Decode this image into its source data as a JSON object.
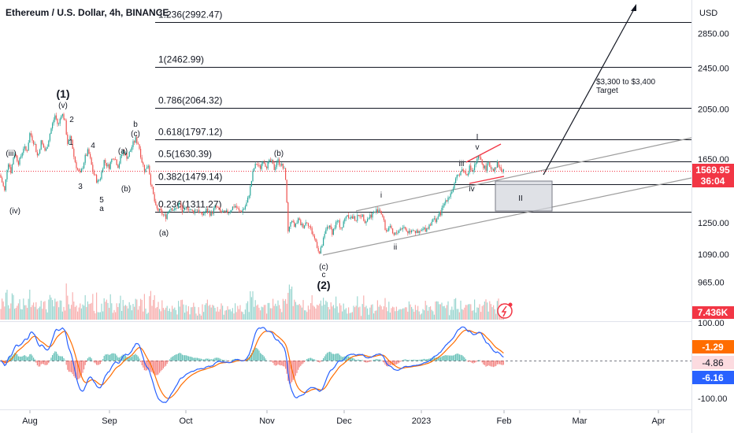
{
  "header": {
    "title": "Ethereum / U.S. Dollar, 4h, BINANCE",
    "currency": "USD"
  },
  "colors": {
    "up": "#26a69a",
    "down": "#ef5350",
    "accent_red": "#f23645",
    "macd_line": "#2962ff",
    "signal_line": "#ff6d00",
    "fib_line": "#131722",
    "channel_line": "#9e9e9e"
  },
  "chart_data": {
    "type": "candlestick",
    "price_axis": {
      "ticks": [
        "2850.00",
        "2450.00",
        "2050.00",
        "1650.00",
        "1250.00",
        "1090.00",
        "965.00"
      ],
      "tick_values": [
        2850,
        2450,
        2050,
        1650,
        1250,
        1090,
        965
      ],
      "scale": "log",
      "range": [
        900,
        3450
      ]
    },
    "time_axis": {
      "labels": [
        "Aug",
        "Sep",
        "Oct",
        "Nov",
        "Dec",
        "2023",
        "Feb",
        "Mar",
        "Apr"
      ]
    },
    "price_path": [
      [
        0,
        1540
      ],
      [
        6,
        1430
      ],
      [
        10,
        1640
      ],
      [
        14,
        1560
      ],
      [
        18,
        1700
      ],
      [
        24,
        1620
      ],
      [
        30,
        1740
      ],
      [
        34,
        1700
      ],
      [
        38,
        1850
      ],
      [
        44,
        1760
      ],
      [
        48,
        1660
      ],
      [
        52,
        1780
      ],
      [
        58,
        1700
      ],
      [
        64,
        1860
      ],
      [
        70,
        2000
      ],
      [
        74,
        1900
      ],
      [
        78,
        2020
      ],
      [
        82,
        1960
      ],
      [
        86,
        1760
      ],
      [
        90,
        1820
      ],
      [
        94,
        1660
      ],
      [
        98,
        1580
      ],
      [
        102,
        1540
      ],
      [
        108,
        1660
      ],
      [
        112,
        1710
      ],
      [
        118,
        1560
      ],
      [
        124,
        1490
      ],
      [
        128,
        1530
      ],
      [
        132,
        1640
      ],
      [
        138,
        1590
      ],
      [
        144,
        1680
      ],
      [
        150,
        1600
      ],
      [
        156,
        1710
      ],
      [
        162,
        1660
      ],
      [
        168,
        1750
      ],
      [
        172,
        1800
      ],
      [
        176,
        1760
      ],
      [
        180,
        1640
      ],
      [
        184,
        1560
      ],
      [
        188,
        1620
      ],
      [
        192,
        1470
      ],
      [
        198,
        1330
      ],
      [
        204,
        1310
      ],
      [
        210,
        1280
      ],
      [
        216,
        1340
      ],
      [
        222,
        1320
      ],
      [
        228,
        1360
      ],
      [
        232,
        1300
      ],
      [
        238,
        1340
      ],
      [
        244,
        1310
      ],
      [
        250,
        1330
      ],
      [
        256,
        1290
      ],
      [
        262,
        1320
      ],
      [
        268,
        1300
      ],
      [
        274,
        1340
      ],
      [
        280,
        1310
      ],
      [
        286,
        1300
      ],
      [
        292,
        1320
      ],
      [
        298,
        1350
      ],
      [
        304,
        1310
      ],
      [
        310,
        1330
      ],
      [
        314,
        1370
      ],
      [
        318,
        1460
      ],
      [
        322,
        1580
      ],
      [
        326,
        1620
      ],
      [
        330,
        1580
      ],
      [
        334,
        1650
      ],
      [
        338,
        1600
      ],
      [
        344,
        1640
      ],
      [
        348,
        1580
      ],
      [
        352,
        1640
      ],
      [
        356,
        1620
      ],
      [
        362,
        1560
      ],
      [
        366,
        1180
      ],
      [
        370,
        1280
      ],
      [
        374,
        1220
      ],
      [
        378,
        1270
      ],
      [
        384,
        1230
      ],
      [
        390,
        1260
      ],
      [
        396,
        1200
      ],
      [
        402,
        1140
      ],
      [
        406,
        1090
      ],
      [
        410,
        1150
      ],
      [
        416,
        1240
      ],
      [
        422,
        1200
      ],
      [
        428,
        1260
      ],
      [
        434,
        1220
      ],
      [
        440,
        1300
      ],
      [
        446,
        1280
      ],
      [
        452,
        1270
      ],
      [
        458,
        1300
      ],
      [
        464,
        1260
      ],
      [
        470,
        1290
      ],
      [
        476,
        1310
      ],
      [
        482,
        1330
      ],
      [
        486,
        1280
      ],
      [
        490,
        1200
      ],
      [
        494,
        1230
      ],
      [
        500,
        1180
      ],
      [
        506,
        1210
      ],
      [
        512,
        1230
      ],
      [
        518,
        1200
      ],
      [
        524,
        1220
      ],
      [
        530,
        1190
      ],
      [
        536,
        1210
      ],
      [
        542,
        1220
      ],
      [
        548,
        1260
      ],
      [
        554,
        1270
      ],
      [
        560,
        1310
      ],
      [
        566,
        1380
      ],
      [
        572,
        1420
      ],
      [
        576,
        1460
      ],
      [
        580,
        1520
      ],
      [
        584,
        1560
      ],
      [
        588,
        1580
      ],
      [
        592,
        1540
      ],
      [
        596,
        1590
      ],
      [
        600,
        1560
      ],
      [
        604,
        1620
      ],
      [
        608,
        1660
      ],
      [
        612,
        1620
      ],
      [
        616,
        1580
      ],
      [
        620,
        1610
      ],
      [
        626,
        1580
      ],
      [
        632,
        1620
      ],
      [
        636,
        1570
      ],
      [
        640,
        1570
      ]
    ],
    "fib_levels": [
      {
        "label": "1.236(2992.47)",
        "value": 2992.47
      },
      {
        "label": "1(2462.99)",
        "value": 2462.99
      },
      {
        "label": "0.786(2064.32)",
        "value": 2064.32
      },
      {
        "label": "0.618(1797.12)",
        "value": 1797.12
      },
      {
        "label": "0.5(1630.39)",
        "value": 1630.39
      },
      {
        "label": "0.382(1479.14)",
        "value": 1479.14
      },
      {
        "label": "0.236(1311.27)",
        "value": 1311.27
      }
    ],
    "wave_labels": [
      "(1)",
      "(v)",
      "2",
      "1",
      "4",
      "(iii)",
      "3",
      "5",
      "a",
      "(iv)",
      "(a)",
      "(b)",
      "b",
      "(c)",
      "(a)",
      "(b)",
      "i",
      "ii",
      "(c)",
      "c",
      "(2)",
      "iii",
      "iv",
      "v",
      "I",
      "II"
    ],
    "target_annotation": {
      "line1": "$3,300 to $3,400",
      "line2": "Target"
    },
    "last_price": "1569.95",
    "countdown": "36:04",
    "volume_badge": "7.436K",
    "macd_axis": [
      "100.00",
      "-100.00"
    ],
    "macd_values": [
      "-1.29",
      "-4.86",
      "-6.16"
    ]
  }
}
